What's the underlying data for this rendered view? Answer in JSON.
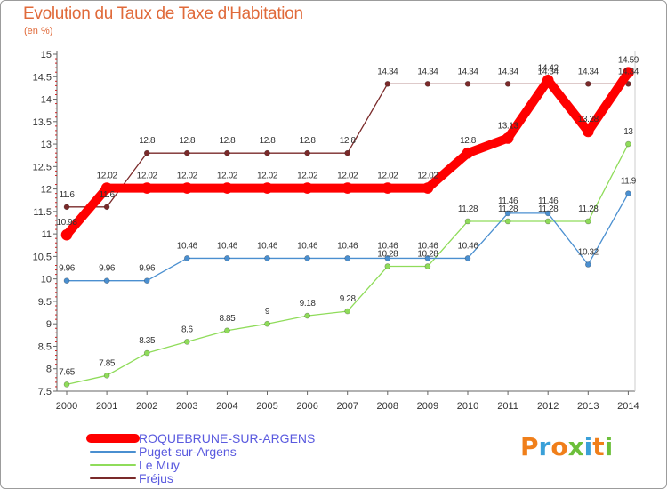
{
  "chart_data": {
    "type": "line",
    "title": "Evolution du Taux de Taxe d'Habitation",
    "unit_label": "(en %)",
    "x": [
      "2000",
      "2001",
      "2002",
      "2003",
      "2004",
      "2005",
      "2006",
      "2007",
      "2008",
      "2009",
      "2010",
      "2011",
      "2012",
      "2013",
      "2014"
    ],
    "ylim": [
      7.5,
      15
    ],
    "yticks": [
      "7.5",
      "8",
      "8.5",
      "9",
      "9.5",
      "10",
      "10.5",
      "11",
      "11.5",
      "12",
      "12.5",
      "13",
      "13.5",
      "14",
      "14.5",
      "15"
    ],
    "grid": false,
    "legend_position": "bottom-left",
    "series": [
      {
        "name": "ROQUEBRUNE-SUR-ARGENS",
        "color": "#ff0000",
        "values": [
          10.98,
          12.02,
          12.02,
          12.02,
          12.02,
          12.02,
          12.02,
          12.02,
          12.02,
          12.02,
          12.8,
          13.13,
          14.42,
          13.28,
          14.59
        ],
        "labels": [
          "10.98",
          "12.02",
          "12.02",
          "12.02",
          "12.02",
          "12.02",
          "12.02",
          "12.02",
          "12.02",
          "12.02",
          "12.8",
          "13.13",
          "14.42",
          "13.28",
          "14.59"
        ]
      },
      {
        "name": "Puget-sur-Argens",
        "color": "#4a8fd0",
        "values": [
          9.96,
          9.96,
          9.96,
          10.46,
          10.46,
          10.46,
          10.46,
          10.46,
          10.46,
          10.46,
          10.46,
          11.46,
          11.46,
          10.32,
          11.9
        ],
        "labels": [
          "9.96",
          "9.96",
          "9.96",
          "10.46",
          "10.46",
          "10.46",
          "10.46",
          "10.46",
          "10.46",
          "10.46",
          "10.46",
          "11.46",
          "11.46",
          "10.32",
          "11.9"
        ]
      },
      {
        "name": "Le Muy",
        "color": "#8fdc5a",
        "values": [
          7.65,
          7.85,
          8.35,
          8.6,
          8.85,
          9,
          9.18,
          9.28,
          10.28,
          10.28,
          11.28,
          11.28,
          11.28,
          11.28,
          13
        ],
        "labels": [
          "7.65",
          "7.85",
          "8.35",
          "8.6",
          "8.85",
          "9",
          "9.18",
          "9.28",
          "10.28",
          "10.28",
          "11.28",
          "11.28",
          "11.28",
          "11.28",
          "13"
        ]
      },
      {
        "name": "Fréjus",
        "color": "#7a2a2a",
        "values": [
          11.6,
          11.6,
          12.8,
          12.8,
          12.8,
          12.8,
          12.8,
          12.8,
          14.34,
          14.34,
          14.34,
          14.34,
          14.34,
          14.34,
          14.34
        ],
        "labels": [
          "11.6",
          "11.6",
          "12.8",
          "12.8",
          "12.8",
          "12.8",
          "12.8",
          "12.8",
          "14.34",
          "14.34",
          "14.34",
          "14.34",
          "14.34",
          "14.34",
          "14.34"
        ]
      }
    ]
  },
  "logo": {
    "letters": [
      "P",
      "r",
      "o",
      "x",
      "i",
      "t",
      "i"
    ],
    "colors": [
      "#f07f1a",
      "#3aa0d8",
      "#f07f1a",
      "#6cbf3a",
      "#3aa0d8",
      "#f07f1a",
      "#6cbf3a"
    ]
  },
  "legend": {
    "text_color": "#5a5adf"
  }
}
